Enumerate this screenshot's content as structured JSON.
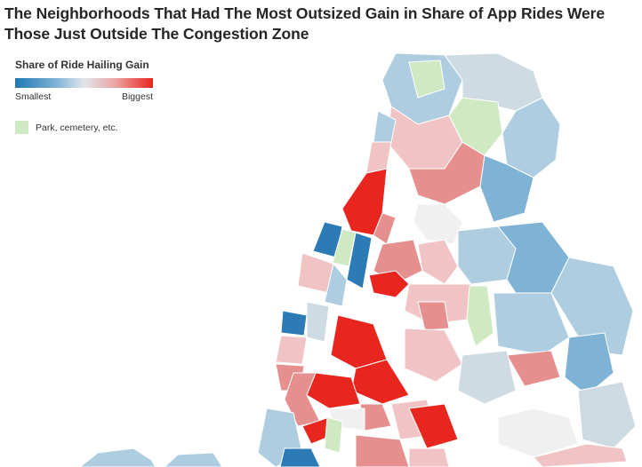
{
  "title": "The Neighborhoods That Had The Most Outsized Gain in Share of App Rides Were Those Just Outside The Congestion Zone",
  "legend": {
    "title": "Share of Ride Hailing Gain",
    "low_label": "Smallest",
    "high_label": "Biggest",
    "gradient_colors": [
      "#1f78b4",
      "#dfe6ea",
      "#e8251f"
    ],
    "park_label": "Park, cemetery, etc.",
    "park_color": "#cfe9c3"
  },
  "colors": {
    "blue_dark": "#2c7bb6",
    "blue_mid": "#7fb3d5",
    "blue_light": "#aecde0",
    "gray": "#cfdbe3",
    "pink_light": "#f0c4c4",
    "pink_mid": "#e58f8f",
    "red": "#e8251f",
    "park": "#cfe9c3",
    "white_area": "#f0f0f0"
  }
}
